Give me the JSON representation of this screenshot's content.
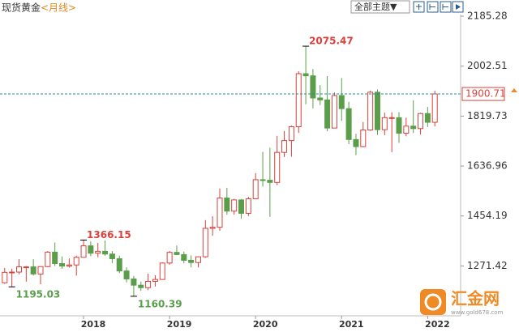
{
  "chart_data": {
    "type": "candlestick",
    "title": "现货黄金",
    "subtitle": "<月线>",
    "toolbar_button": "全部主题▼",
    "watermark": "汇金网",
    "watermark_url": "www.gold678.com",
    "up_color": "#d9413a",
    "down_color": "#5a9e4b",
    "price_line_color": "#2a8c9c",
    "categories": [
      null,
      null,
      null,
      null,
      null,
      null,
      null,
      null,
      null,
      null,
      null,
      "2018",
      null,
      null,
      null,
      null,
      null,
      null,
      null,
      null,
      null,
      null,
      null,
      "2019",
      null,
      null,
      null,
      null,
      null,
      null,
      null,
      null,
      null,
      null,
      null,
      "2020",
      null,
      null,
      null,
      null,
      null,
      null,
      null,
      null,
      null,
      null,
      null,
      "2021",
      null,
      null,
      null,
      null,
      null,
      null,
      null,
      null,
      null,
      null,
      null,
      "2022",
      null
    ],
    "open": [
      1210,
      1248,
      1249,
      1268,
      1268,
      1242,
      1269,
      1322,
      1280,
      1271,
      1275,
      1303,
      1345,
      1318,
      1325,
      1315,
      1298,
      1253,
      1224,
      1201,
      1192,
      1215,
      1222,
      1282,
      1321,
      1313,
      1292,
      1284,
      1305,
      1409,
      1413,
      1520,
      1472,
      1513,
      1464,
      1517,
      1587,
      1585,
      1577,
      1687,
      1730,
      1781,
      1975,
      1967,
      1886,
      1879,
      1776,
      1895,
      1847,
      1734,
      1708,
      1769,
      1907,
      1770,
      1814,
      1814,
      1757,
      1783,
      1774,
      1829,
      1797
    ],
    "high": [
      1264,
      1261,
      1296,
      1271,
      1296,
      1270,
      1326,
      1357,
      1306,
      1299,
      1309,
      1366.15,
      1361,
      1356,
      1365,
      1326,
      1309,
      1266,
      1235,
      1214,
      1243,
      1237,
      1285,
      1326,
      1346,
      1324,
      1310,
      1306,
      1439,
      1453,
      1555,
      1557,
      1517,
      1516,
      1524,
      1611,
      1689,
      1704,
      1747,
      1765,
      1785,
      1984,
      2075.47,
      1992,
      1933,
      1966,
      1906,
      1959,
      1872,
      1755,
      1798,
      1913,
      1917,
      1832,
      1834,
      1834,
      1814,
      1877,
      1832,
      1853,
      1913
    ],
    "low": [
      1206,
      1195.03,
      1241,
      1214,
      1236,
      1204,
      1267,
      1271,
      1261,
      1265,
      1236,
      1302,
      1307,
      1303,
      1309,
      1282,
      1245,
      1211,
      1160.39,
      1180,
      1183,
      1196,
      1221,
      1276,
      1311,
      1281,
      1266,
      1266,
      1301,
      1382,
      1400,
      1459,
      1459,
      1445,
      1454,
      1517,
      1562,
      1451,
      1567,
      1670,
      1671,
      1758,
      1863,
      1848,
      1860,
      1764,
      1775,
      1802,
      1717,
      1677,
      1706,
      1766,
      1751,
      1750,
      1688,
      1722,
      1746,
      1758,
      1753,
      1780,
      1782
    ],
    "close": [
      1248,
      1249,
      1268,
      1268,
      1242,
      1269,
      1322,
      1280,
      1271,
      1275,
      1303,
      1345,
      1318,
      1325,
      1315,
      1298,
      1253,
      1224,
      1201,
      1192,
      1215,
      1222,
      1282,
      1321,
      1313,
      1292,
      1284,
      1305,
      1409,
      1413,
      1520,
      1472,
      1513,
      1464,
      1517,
      1587,
      1585,
      1577,
      1687,
      1730,
      1781,
      1975,
      1967,
      1886,
      1879,
      1776,
      1895,
      1847,
      1734,
      1708,
      1769,
      1907,
      1770,
      1814,
      1814,
      1757,
      1783,
      1774,
      1829,
      1797,
      1900.71
    ],
    "high_labels": [
      null,
      null,
      null,
      null,
      null,
      null,
      null,
      null,
      null,
      null,
      null,
      "1366.15",
      null,
      null,
      null,
      null,
      null,
      null,
      null,
      null,
      null,
      null,
      null,
      null,
      null,
      null,
      null,
      null,
      null,
      null,
      null,
      null,
      null,
      null,
      null,
      null,
      null,
      null,
      null,
      null,
      null,
      null,
      "2075.47",
      null,
      null,
      null,
      null,
      null,
      null,
      null,
      null,
      null,
      null,
      null,
      null,
      null,
      null,
      null,
      null,
      null,
      null
    ],
    "low_labels": [
      null,
      "1195.03",
      null,
      null,
      null,
      null,
      null,
      null,
      null,
      null,
      null,
      null,
      null,
      null,
      null,
      null,
      null,
      null,
      "1160.39",
      null,
      null,
      null,
      null,
      null,
      null,
      null,
      null,
      null,
      null,
      null,
      null,
      null,
      null,
      null,
      null,
      null,
      null,
      null,
      null,
      null,
      null,
      null,
      null,
      null,
      null,
      null,
      null,
      null,
      null,
      null,
      null,
      null,
      null,
      null,
      null,
      null,
      null,
      null,
      null,
      null,
      null
    ],
    "last_price": 1900.71,
    "ylim": [
      1088.97,
      2244.54
    ],
    "yticks": [
      1271.42,
      1454.19,
      1636.96,
      1819.73,
      2002.51,
      2185.28
    ]
  }
}
